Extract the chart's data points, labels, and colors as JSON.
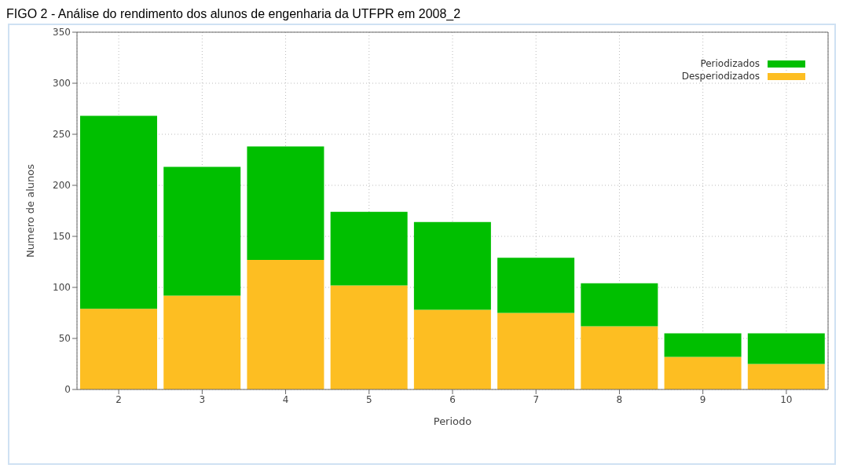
{
  "chart_data": {
    "type": "bar",
    "title": "FIGO 2 - Análise do rendimento dos alunos de engenharia da UTFPR em 2008_2",
    "xlabel": "Periodo",
    "ylabel": "Numero de alunos",
    "categories": [
      "2",
      "3",
      "4",
      "5",
      "6",
      "7",
      "8",
      "9",
      "10"
    ],
    "stacked": true,
    "series": [
      {
        "name": "Desperiodizados",
        "color": "#fdbe22",
        "values": [
          79,
          92,
          127,
          102,
          78,
          75,
          62,
          32,
          25
        ]
      },
      {
        "name": "Periodizados",
        "color": "#00bf00",
        "values": [
          189,
          126,
          111,
          72,
          86,
          54,
          42,
          23,
          30
        ]
      }
    ],
    "ylim": [
      0,
      350
    ],
    "yticks": [
      0,
      50,
      100,
      150,
      200,
      250,
      300,
      350
    ],
    "grid": true,
    "legend": "top right"
  }
}
